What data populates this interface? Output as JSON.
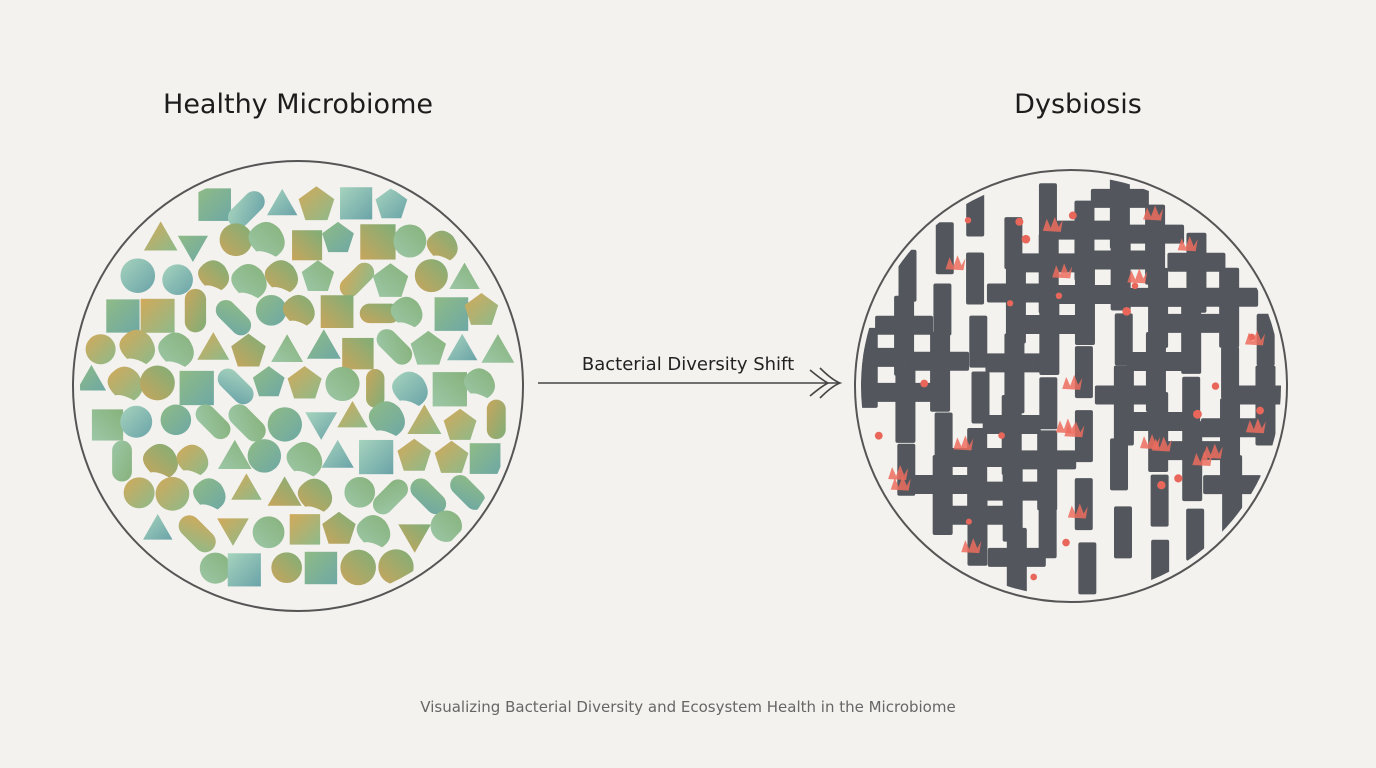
{
  "left_panel": {
    "title": "Healthy Microbiome"
  },
  "right_panel": {
    "title": "Dysbiosis"
  },
  "arrow": {
    "label": "Bacterial Diversity Shift"
  },
  "caption": "Visualizing Bacterial Diversity and Ecosystem Health in the Microbiome"
}
